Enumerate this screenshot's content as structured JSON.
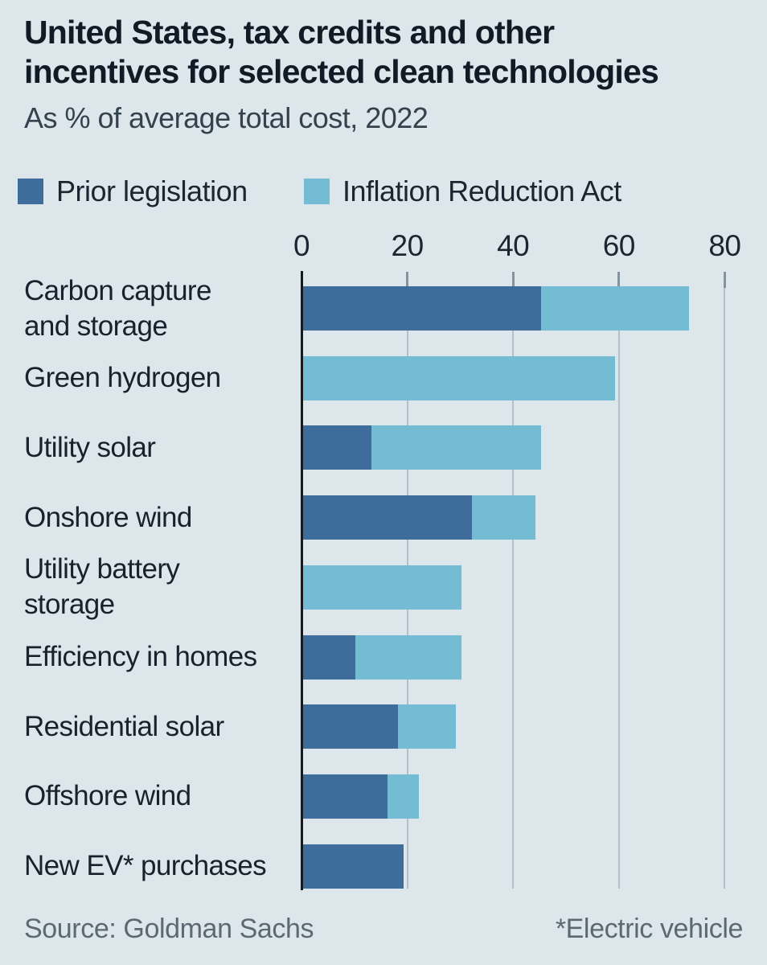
{
  "header": {
    "title_line1": "United States, tax credits and other",
    "title_line2": "incentives for selected clean technologies",
    "subtitle": "As % of average total cost, 2022"
  },
  "legend": {
    "items": [
      {
        "label": "Prior legislation",
        "color": "#3e6c9b"
      },
      {
        "label": "Inflation Reduction Act",
        "color": "#74bcd4"
      }
    ]
  },
  "footer": {
    "source": "Source: Goldman Sachs",
    "footnote": "*Electric vehicle"
  },
  "colors": {
    "background": "#dce6eb",
    "prior_legislation": "#3e6c9b",
    "inflation_reduction_act": "#74bcd4",
    "gridline": "#b2c0c8",
    "axis": "#14191e",
    "text_dark": "#17222c",
    "text_muted": "#5c6973"
  },
  "chart_data": {
    "type": "bar",
    "stacked": true,
    "horizontal": true,
    "title": "United States, tax credits and other incentives for selected clean technologies",
    "subtitle": "As % of average total cost, 2022",
    "xlabel": "% of average total cost",
    "ylabel": "",
    "xlim": [
      0,
      80
    ],
    "xticks": [
      0,
      20,
      40,
      60,
      80
    ],
    "grid": "vertical",
    "legend_position": "top",
    "categories": [
      "Carbon capture and storage",
      "Green hydrogen",
      "Utility solar",
      "Onshore wind",
      "Utility battery storage",
      "Efficiency in homes",
      "Residential solar",
      "Offshore wind",
      "New EV* purchases"
    ],
    "category_line_breaks": [
      [
        "Carbon capture",
        "and storage"
      ],
      [
        "Green hydrogen"
      ],
      [
        "Utility solar"
      ],
      [
        "Onshore wind"
      ],
      [
        "Utility battery",
        "storage"
      ],
      [
        "Efficiency in homes"
      ],
      [
        "Residential solar"
      ],
      [
        "Offshore wind"
      ],
      [
        "New EV* purchases"
      ]
    ],
    "series": [
      {
        "name": "Prior legislation",
        "color": "#3e6c9b",
        "values": [
          45,
          0,
          13,
          32,
          0,
          10,
          18,
          16,
          19
        ]
      },
      {
        "name": "Inflation Reduction Act",
        "color": "#74bcd4",
        "values": [
          28,
          59,
          32,
          12,
          30,
          20,
          11,
          6,
          0
        ]
      }
    ],
    "totals": [
      73,
      59,
      45,
      44,
      30,
      30,
      29,
      22,
      19
    ]
  }
}
